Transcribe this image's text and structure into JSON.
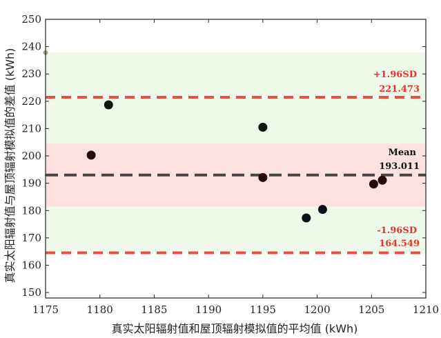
{
  "chart_data": {
    "type": "scatter",
    "title": "",
    "xlabel": "真实太阳辐射值和屋顶辐射模拟值的平均值 (kWh)",
    "ylabel": "真实太阳辐射值与屋顶辐射模拟值的差值 (kWh)",
    "xlim": [
      1175,
      1210
    ],
    "ylim": [
      148,
      250
    ],
    "xticks": [
      "1175",
      "1180",
      "1185",
      "1190",
      "1195",
      "1200",
      "1205",
      "1210"
    ],
    "yticks": [
      "150",
      "160",
      "170",
      "180",
      "190",
      "200",
      "210",
      "220",
      "230",
      "240",
      "250"
    ],
    "grid": false,
    "points": [
      {
        "x": 1179.2,
        "y": 200.3,
        "color": "#2a0a0a"
      },
      {
        "x": 1180.8,
        "y": 218.7,
        "color": "#0a1a0a"
      },
      {
        "x": 1195.0,
        "y": 210.5,
        "color": "#0a1a0a"
      },
      {
        "x": 1195.0,
        "y": 192.1,
        "color": "#2a0a0a"
      },
      {
        "x": 1199.0,
        "y": 177.3,
        "color": "#0a1018"
      },
      {
        "x": 1200.5,
        "y": 180.4,
        "color": "#0a1018"
      },
      {
        "x": 1205.2,
        "y": 189.7,
        "color": "#2a0a0a"
      },
      {
        "x": 1206.0,
        "y": 191.1,
        "color": "#2a0a0a"
      }
    ],
    "outlier_point": {
      "x": 1175.0,
      "y": 237.8,
      "color": "#a8a888"
    },
    "bands": [
      {
        "y0": 164.549,
        "y1": 237.8,
        "color": "#eef9ea"
      },
      {
        "y0": 181.5,
        "y1": 204.5,
        "color": "#fde0e0"
      }
    ],
    "lines": {
      "upper": {
        "value": 221.473,
        "label": "+1.96SD",
        "value_label": "221.473",
        "color": "#ef4c45"
      },
      "mean": {
        "value": 193.011,
        "label": "Mean",
        "value_label": "193.011",
        "color": "#4a4444"
      },
      "lower": {
        "value": 164.549,
        "label": "-1.96SD",
        "value_label": "164.549",
        "color": "#ef4c45"
      }
    }
  }
}
